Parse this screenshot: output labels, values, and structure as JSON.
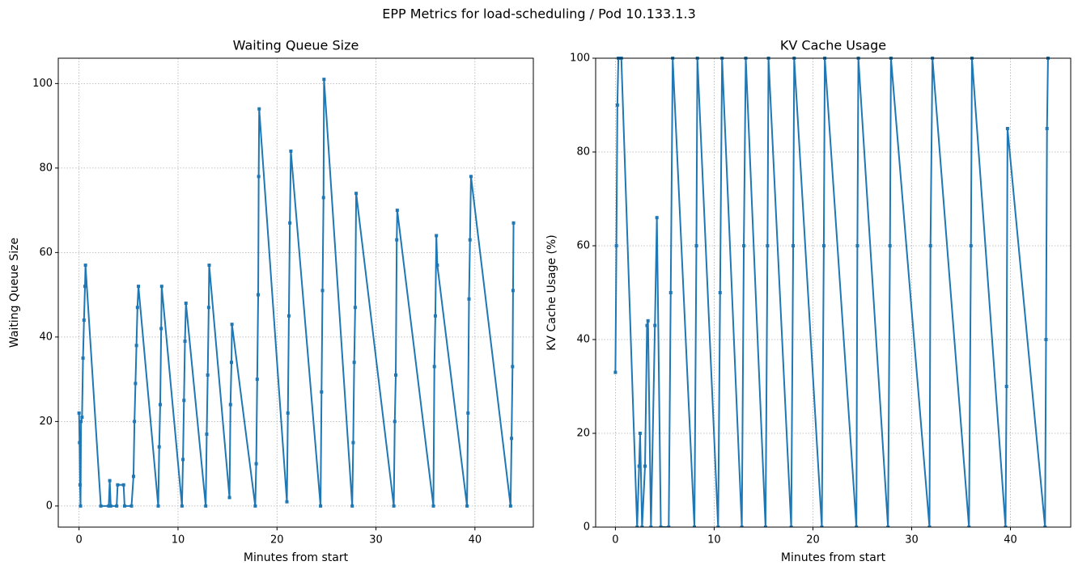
{
  "title": "EPP Metrics for load-scheduling / Pod 10.133.1.3",
  "chart_data": [
    {
      "type": "line",
      "title": "Waiting Queue Size",
      "xlabel": "Minutes from start",
      "ylabel": "Waiting Queue Size",
      "color": "#1f77b4",
      "grid": true,
      "xlim": [
        -2.1,
        45.9
      ],
      "xticks": [
        0,
        10,
        20,
        30,
        40
      ],
      "ylim": [
        -5,
        106
      ],
      "yticks": [
        0,
        20,
        40,
        60,
        80,
        100
      ],
      "x": [
        0,
        0.05,
        0.1,
        0.15,
        0.2,
        0.3,
        0.4,
        0.5,
        0.6,
        0.65,
        2.2,
        3.0,
        3.1,
        3.2,
        3.8,
        3.9,
        4.5,
        4.6,
        5.3,
        5.5,
        5.6,
        5.7,
        5.8,
        5.9,
        6.0,
        8.0,
        8.1,
        8.2,
        8.3,
        8.35,
        10.4,
        10.5,
        10.6,
        10.7,
        10.8,
        12.8,
        12.9,
        13.0,
        13.1,
        13.15,
        15.2,
        15.3,
        15.4,
        15.45,
        17.8,
        17.9,
        18.0,
        18.1,
        18.15,
        18.2,
        21.0,
        21.1,
        21.2,
        21.3,
        21.4,
        24.4,
        24.5,
        24.6,
        24.7,
        24.75,
        27.6,
        27.7,
        27.8,
        27.9,
        28.0,
        31.8,
        31.9,
        32.0,
        32.1,
        32.15,
        35.8,
        35.9,
        36.0,
        36.1,
        36.2,
        39.2,
        39.3,
        39.4,
        39.5,
        39.6,
        43.6,
        43.7,
        43.8,
        43.85,
        43.9
      ],
      "values": [
        22,
        15,
        5,
        0,
        20,
        21,
        35,
        44,
        52,
        57,
        0,
        0,
        6,
        0,
        0,
        5,
        5,
        0,
        0,
        7,
        20,
        29,
        38,
        47,
        52,
        0,
        14,
        24,
        42,
        52,
        0,
        11,
        25,
        39,
        48,
        0,
        17,
        31,
        47,
        57,
        2,
        24,
        34,
        43,
        0,
        10,
        30,
        50,
        78,
        94,
        1,
        22,
        45,
        67,
        84,
        0,
        27,
        51,
        73,
        101,
        0,
        15,
        34,
        47,
        74,
        0,
        20,
        31,
        63,
        70,
        0,
        33,
        45,
        64,
        57,
        0,
        22,
        49,
        63,
        78,
        0,
        16,
        33,
        51,
        67
      ]
    },
    {
      "type": "line",
      "title": "KV Cache Usage",
      "xlabel": "Minutes from start",
      "ylabel": "KV Cache Usage (%)",
      "color": "#1f77b4",
      "grid": true,
      "xlim": [
        -2.0,
        46.1
      ],
      "xticks": [
        0,
        10,
        20,
        30,
        40
      ],
      "ylim": [
        0,
        100
      ],
      "yticks": [
        0,
        20,
        40,
        60,
        80,
        100
      ],
      "x": [
        0,
        0.1,
        0.2,
        0.3,
        0.6,
        2.2,
        2.4,
        2.5,
        2.7,
        3.0,
        3.2,
        3.3,
        3.6,
        4.0,
        4.2,
        4.6,
        5.4,
        5.6,
        5.8,
        8.0,
        8.2,
        8.3,
        10.4,
        10.6,
        10.8,
        12.8,
        13.0,
        13.2,
        15.2,
        15.4,
        15.5,
        17.8,
        18.0,
        18.1,
        20.9,
        21.1,
        21.2,
        24.4,
        24.5,
        24.6,
        27.6,
        27.8,
        27.9,
        31.8,
        31.9,
        32.1,
        35.8,
        36.0,
        36.1,
        39.5,
        39.6,
        39.7,
        43.5,
        43.6,
        43.7,
        43.8
      ],
      "values": [
        33,
        60,
        90,
        100,
        100,
        0,
        13,
        20,
        0,
        13,
        43,
        44,
        0,
        43,
        66,
        0,
        0,
        50,
        100,
        0,
        60,
        100,
        0,
        50,
        100,
        0,
        60,
        100,
        0,
        60,
        100,
        0,
        60,
        100,
        0,
        60,
        100,
        0,
        60,
        100,
        0,
        60,
        100,
        0,
        60,
        100,
        0,
        60,
        100,
        0,
        30,
        85,
        0,
        40,
        85,
        100
      ]
    }
  ]
}
